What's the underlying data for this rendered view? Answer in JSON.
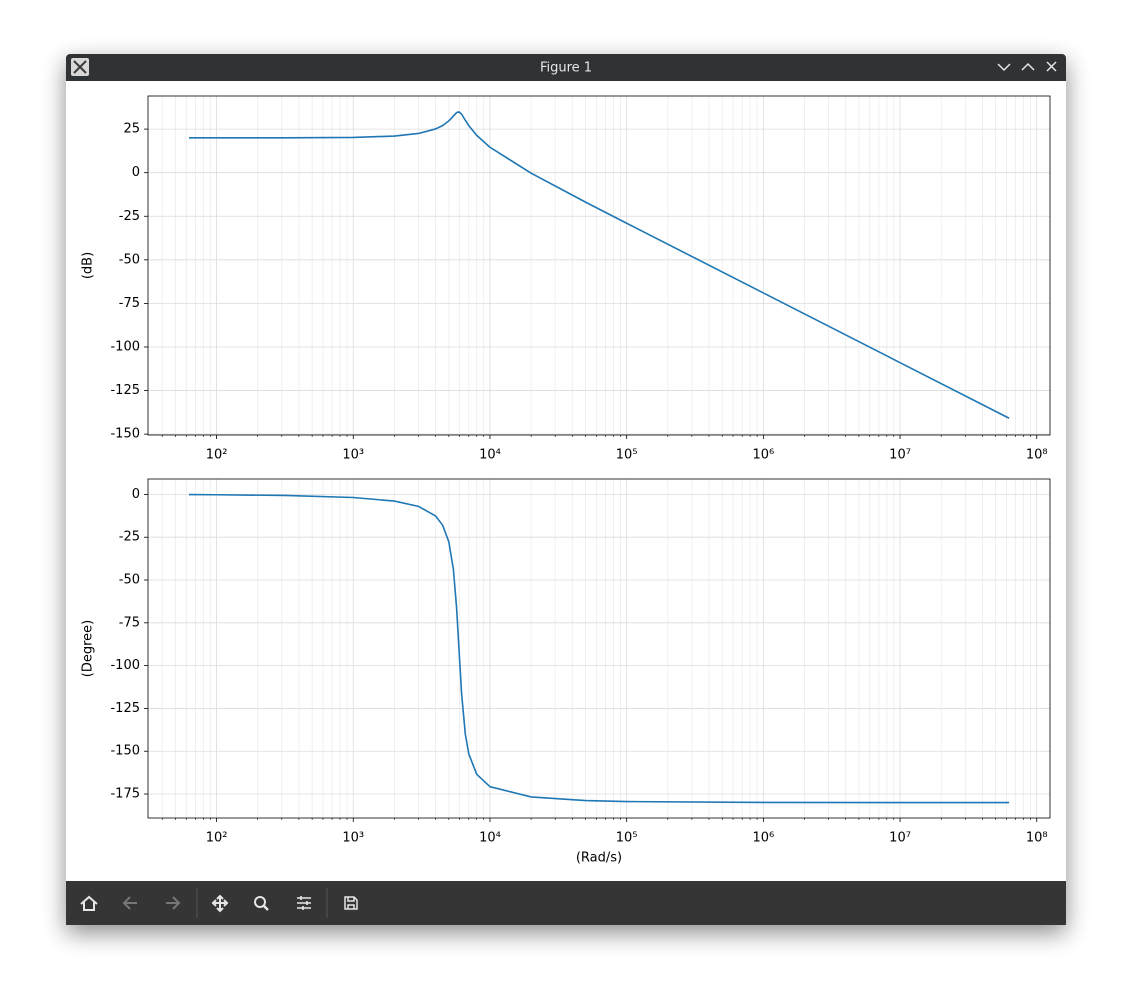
{
  "window": {
    "title": "Figure 1"
  },
  "chart_data": [
    {
      "type": "line",
      "ylabel": "(dB)",
      "xscale": "log",
      "grid": true,
      "minor_grid": true,
      "xlim": [
        31.5,
        125000000
      ],
      "ylim": [
        -150.5,
        44
      ],
      "xticks": [
        {
          "value": 100,
          "label": "10²"
        },
        {
          "value": 1000,
          "label": "10³"
        },
        {
          "value": 10000,
          "label": "10⁴"
        },
        {
          "value": 100000,
          "label": "10⁵"
        },
        {
          "value": 1000000,
          "label": "10⁶"
        },
        {
          "value": 10000000,
          "label": "10⁷"
        },
        {
          "value": 100000000,
          "label": "10⁸"
        }
      ],
      "xminor_ticks": [
        40,
        50,
        60,
        70,
        80,
        90,
        200,
        300,
        400,
        500,
        600,
        700,
        800,
        900,
        2000,
        3000,
        4000,
        5000,
        6000,
        7000,
        8000,
        9000,
        20000,
        30000,
        40000,
        50000,
        60000,
        70000,
        80000,
        90000,
        200000,
        300000,
        400000,
        500000,
        600000,
        700000,
        800000,
        900000,
        2000000,
        3000000,
        4000000,
        5000000,
        6000000,
        7000000,
        8000000,
        9000000,
        20000000,
        30000000,
        40000000,
        50000000,
        60000000,
        70000000,
        80000000,
        90000000
      ],
      "yticks": [
        -150,
        -125,
        -100,
        -75,
        -50,
        -25,
        0,
        25
      ],
      "x": [
        62.8,
        100,
        316,
        1000,
        2000,
        3000,
        4000,
        4500,
        5000,
        5400,
        5700,
        5930,
        6200,
        6600,
        7000,
        8000,
        10000,
        20000,
        50000,
        100000,
        1000000,
        10000000,
        62800000
      ],
      "series": [
        {
          "color": "#1f77b4",
          "values": [
            20,
            20,
            20.02,
            20.25,
            21.0,
            22.5,
            25.1,
            27.0,
            29.7,
            32.5,
            34.5,
            34.9,
            33.6,
            30.1,
            27.0,
            21.4,
            14.6,
            -0.3,
            -16.9,
            -29.0,
            -69.0,
            -109.0,
            -140.9
          ]
        }
      ]
    },
    {
      "type": "line",
      "ylabel": "(Degree)",
      "xlabel": "(Rad/s)",
      "xscale": "log",
      "grid": true,
      "minor_grid": true,
      "xlim": [
        31.5,
        125000000
      ],
      "ylim": [
        -189,
        9
      ],
      "xticks": [
        {
          "value": 100,
          "label": "10²"
        },
        {
          "value": 1000,
          "label": "10³"
        },
        {
          "value": 10000,
          "label": "10⁴"
        },
        {
          "value": 100000,
          "label": "10⁵"
        },
        {
          "value": 1000000,
          "label": "10⁶"
        },
        {
          "value": 10000000,
          "label": "10⁷"
        },
        {
          "value": 100000000,
          "label": "10⁸"
        }
      ],
      "xminor_ticks": [
        40,
        50,
        60,
        70,
        80,
        90,
        200,
        300,
        400,
        500,
        600,
        700,
        800,
        900,
        2000,
        3000,
        4000,
        5000,
        6000,
        7000,
        8000,
        9000,
        20000,
        30000,
        40000,
        50000,
        60000,
        70000,
        80000,
        90000,
        200000,
        300000,
        400000,
        500000,
        600000,
        700000,
        800000,
        900000,
        2000000,
        3000000,
        4000000,
        5000000,
        6000000,
        7000000,
        8000000,
        9000000,
        20000000,
        30000000,
        40000000,
        50000000,
        60000000,
        70000000,
        80000000,
        90000000
      ],
      "yticks": [
        -175,
        -150,
        -125,
        -100,
        -75,
        -50,
        -25,
        0
      ],
      "x": [
        62.8,
        100,
        316,
        1000,
        2000,
        3000,
        4000,
        4500,
        5000,
        5400,
        5700,
        5930,
        6200,
        6600,
        7000,
        8000,
        10000,
        20000,
        50000,
        100000,
        1000000,
        10000000,
        62800000
      ],
      "series": [
        {
          "color": "#1f77b4",
          "values": [
            -0.1,
            -0.2,
            -0.6,
            -1.8,
            -3.9,
            -7.0,
            -12.6,
            -17.9,
            -27.7,
            -43.8,
            -66.3,
            -90,
            -116.3,
            -140.0,
            -151.6,
            -163.5,
            -170.7,
            -176.7,
            -178.8,
            -179.4,
            -179.9,
            -180.0,
            -180.0
          ]
        }
      ]
    }
  ]
}
